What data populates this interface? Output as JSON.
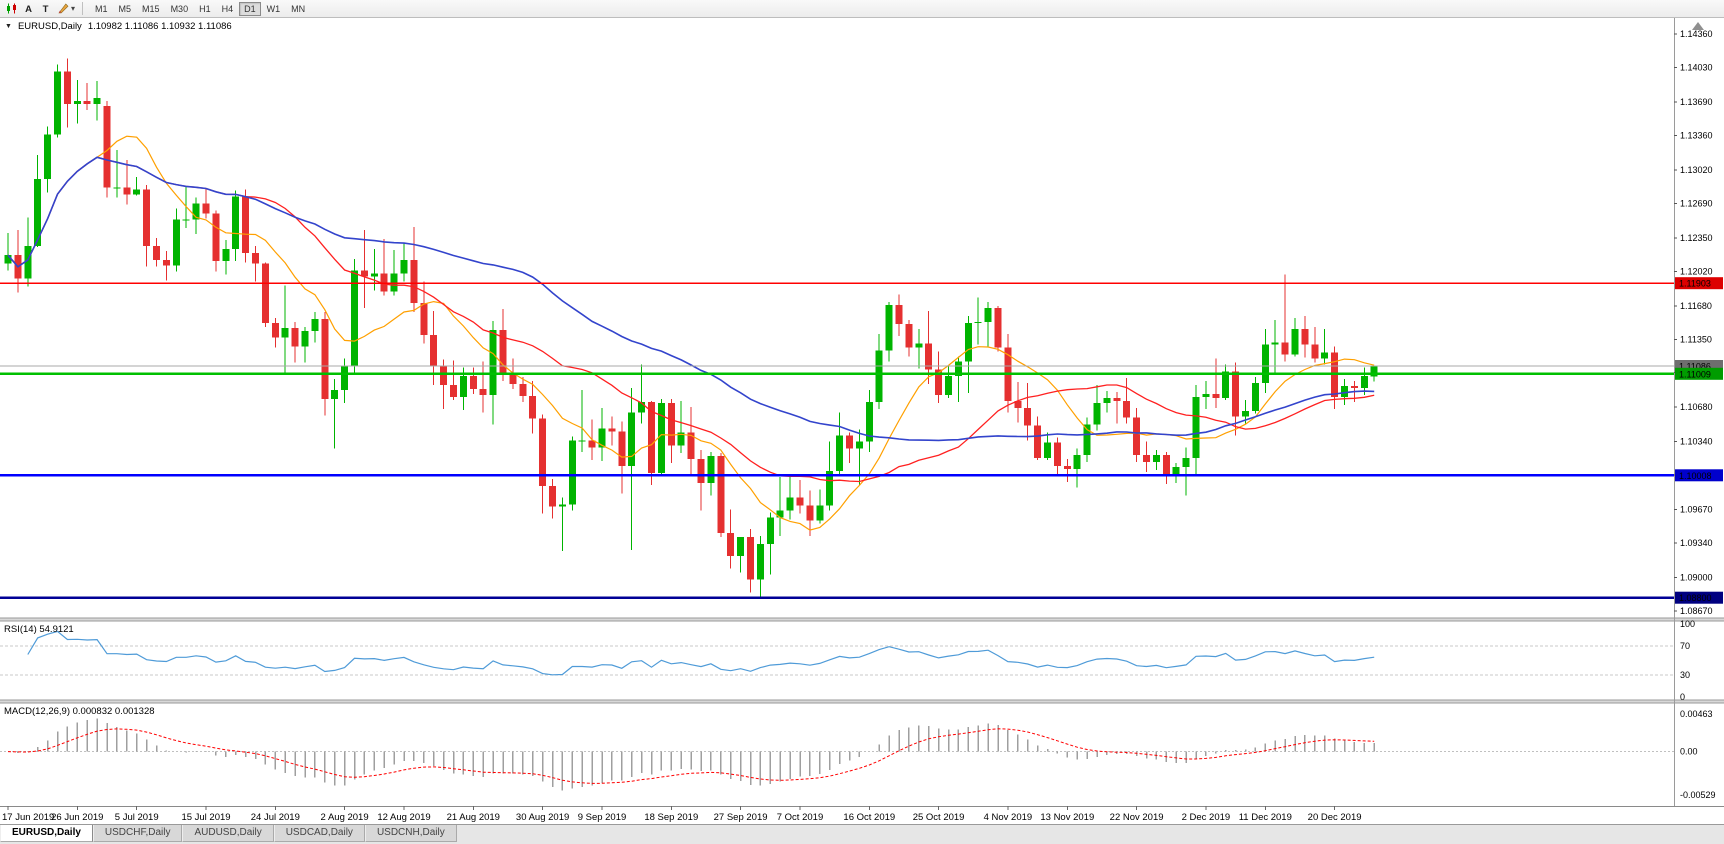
{
  "window": {
    "title": "EURUSD,Daily",
    "ohlc": "1.10982 1.11086 1.10932 1.11086"
  },
  "toolbar": {
    "buttons": [
      {
        "label": "A"
      },
      {
        "label": "T"
      }
    ],
    "timeframes": [
      "M1",
      "M5",
      "M15",
      "M30",
      "H1",
      "H4",
      "D1",
      "W1",
      "MN"
    ],
    "active_timeframe": "D1"
  },
  "chart_data": {
    "type": "candlestick",
    "symbol": "EURUSD",
    "timeframe": "Daily",
    "colors": {
      "up": "#00b400",
      "down": "#e53030"
    },
    "y_range": {
      "max": 1.1452,
      "min": 1.086
    },
    "y_ticks": [
      "1.14360",
      "1.14030",
      "1.13690",
      "1.13360",
      "1.13020",
      "1.12690",
      "1.12350",
      "1.12020",
      "1.11680",
      "1.11350",
      "1.11020",
      "1.10680",
      "1.10340",
      "1.10010",
      "1.09670",
      "1.09340",
      "1.09000",
      "1.08670"
    ],
    "x_ticks": [
      "17 Jun 2019",
      "26 Jun 2019",
      "5 Jul 2019",
      "15 Jul 2019",
      "24 Jul 2019",
      "2 Aug 2019",
      "12 Aug 2019",
      "21 Aug 2019",
      "30 Aug 2019",
      "9 Sep 2019",
      "18 Sep 2019",
      "27 Sep 2019",
      "7 Oct 2019",
      "16 Oct 2019",
      "25 Oct 2019",
      "4 Nov 2019",
      "13 Nov 2019",
      "22 Nov 2019",
      "2 Dec 2019",
      "11 Dec 2019",
      "20 Dec 2019"
    ],
    "candles": [
      [
        1.121,
        1.124,
        1.1203,
        1.1218
      ],
      [
        1.1218,
        1.1243,
        1.1181,
        1.1195
      ],
      [
        1.1195,
        1.1255,
        1.1187,
        1.1227
      ],
      [
        1.1227,
        1.1317,
        1.1226,
        1.1293
      ],
      [
        1.1293,
        1.1345,
        1.128,
        1.1337
      ],
      [
        1.1337,
        1.1406,
        1.1334,
        1.1399
      ],
      [
        1.1399,
        1.1412,
        1.1344,
        1.1367
      ],
      [
        1.1367,
        1.1391,
        1.1348,
        1.137
      ],
      [
        1.137,
        1.1388,
        1.1361,
        1.1367
      ],
      [
        1.1367,
        1.139,
        1.1351,
        1.1373
      ],
      [
        1.1365,
        1.137,
        1.1275,
        1.1285
      ],
      [
        1.1285,
        1.1322,
        1.1275,
        1.1285
      ],
      [
        1.1285,
        1.1312,
        1.1268,
        1.1278
      ],
      [
        1.1278,
        1.1295,
        1.1277,
        1.1283
      ],
      [
        1.1283,
        1.1287,
        1.1207,
        1.1227
      ],
      [
        1.1227,
        1.1235,
        1.1207,
        1.1213
      ],
      [
        1.1213,
        1.1222,
        1.1193,
        1.1208
      ],
      [
        1.1208,
        1.1264,
        1.1202,
        1.1253
      ],
      [
        1.1253,
        1.1286,
        1.1245,
        1.1253
      ],
      [
        1.1253,
        1.1275,
        1.1239,
        1.1269
      ],
      [
        1.1269,
        1.1284,
        1.1254,
        1.1259
      ],
      [
        1.1259,
        1.1262,
        1.1202,
        1.1212
      ],
      [
        1.1212,
        1.1233,
        1.1199,
        1.1224
      ],
      [
        1.1224,
        1.1282,
        1.1212,
        1.1276
      ],
      [
        1.1276,
        1.1283,
        1.1211,
        1.122
      ],
      [
        1.122,
        1.1227,
        1.1192,
        1.121
      ],
      [
        1.121,
        1.1211,
        1.1147,
        1.1151
      ],
      [
        1.1151,
        1.1156,
        1.1127,
        1.1137
      ],
      [
        1.1137,
        1.1188,
        1.1101,
        1.1146
      ],
      [
        1.1146,
        1.1152,
        1.1112,
        1.1128
      ],
      [
        1.1128,
        1.1147,
        1.1112,
        1.1143
      ],
      [
        1.1143,
        1.1162,
        1.1132,
        1.1155
      ],
      [
        1.1155,
        1.1162,
        1.106,
        1.1076
      ],
      [
        1.1076,
        1.1096,
        1.1027,
        1.1085
      ],
      [
        1.1085,
        1.1116,
        1.1072,
        1.1108
      ],
      [
        1.1108,
        1.1214,
        1.1102,
        1.1203
      ],
      [
        1.1203,
        1.1243,
        1.1166,
        1.1197
      ],
      [
        1.1197,
        1.1224,
        1.1183,
        1.12
      ],
      [
        1.12,
        1.1234,
        1.1178,
        1.1182
      ],
      [
        1.1182,
        1.1223,
        1.1178,
        1.12
      ],
      [
        1.12,
        1.123,
        1.1192,
        1.1213
      ],
      [
        1.1213,
        1.1246,
        1.1162,
        1.1171
      ],
      [
        1.1171,
        1.1192,
        1.1131,
        1.1139
      ],
      [
        1.1139,
        1.1163,
        1.109,
        1.1109
      ],
      [
        1.1109,
        1.1115,
        1.1066,
        1.109
      ],
      [
        1.109,
        1.1114,
        1.1075,
        1.1078
      ],
      [
        1.1078,
        1.1107,
        1.1065,
        1.1099
      ],
      [
        1.1099,
        1.1107,
        1.1081,
        1.1086
      ],
      [
        1.1086,
        1.1113,
        1.1063,
        1.108
      ],
      [
        1.108,
        1.1153,
        1.1051,
        1.1144
      ],
      [
        1.1144,
        1.1165,
        1.1094,
        1.1101
      ],
      [
        1.1101,
        1.1116,
        1.1086,
        1.1091
      ],
      [
        1.1091,
        1.1098,
        1.1073,
        1.1079
      ],
      [
        1.1079,
        1.1094,
        1.1042,
        1.1057
      ],
      [
        1.1057,
        1.1061,
        1.0963,
        1.099
      ],
      [
        1.099,
        1.0997,
        1.0958,
        1.097
      ],
      [
        1.097,
        1.0979,
        1.0926,
        1.0972
      ],
      [
        1.0972,
        1.1039,
        1.0966,
        1.1035
      ],
      [
        1.1035,
        1.1085,
        1.1024,
        1.1035
      ],
      [
        1.1035,
        1.1056,
        1.1016,
        1.1028
      ],
      [
        1.1028,
        1.1067,
        1.1015,
        1.1047
      ],
      [
        1.1047,
        1.1059,
        1.103,
        1.1044
      ],
      [
        1.1044,
        1.1054,
        1.0983,
        1.101
      ],
      [
        1.101,
        1.1087,
        1.0927,
        1.1063
      ],
      [
        1.1063,
        1.111,
        1.1052,
        1.1073
      ],
      [
        1.1073,
        1.1074,
        1.0991,
        1.1003
      ],
      [
        1.1003,
        1.1076,
        1.1001,
        1.1072
      ],
      [
        1.1072,
        1.1076,
        1.1013,
        1.103
      ],
      [
        1.103,
        1.1074,
        1.1023,
        1.1043
      ],
      [
        1.1043,
        1.1068,
        1.1,
        1.1017
      ],
      [
        1.1017,
        1.1026,
        1.0966,
        1.0993
      ],
      [
        1.0993,
        1.1024,
        1.0981,
        1.102
      ],
      [
        1.102,
        1.1023,
        1.094,
        1.0944
      ],
      [
        1.0944,
        1.0967,
        1.0909,
        1.0921
      ],
      [
        1.0921,
        1.0938,
        1.0905,
        1.094
      ],
      [
        1.094,
        1.0948,
        1.0885,
        1.0898
      ],
      [
        1.0898,
        1.0941,
        1.0879,
        1.0933
      ],
      [
        1.0933,
        1.0964,
        1.0903,
        1.0959
      ],
      [
        1.0959,
        1.0999,
        1.0941,
        1.0966
      ],
      [
        1.0966,
        1.0999,
        1.0957,
        1.0979
      ],
      [
        1.0979,
        1.0996,
        1.0963,
        1.0971
      ],
      [
        1.0971,
        1.0986,
        1.0941,
        1.0956
      ],
      [
        1.0956,
        1.0987,
        1.0953,
        1.0971
      ],
      [
        1.0971,
        1.1034,
        1.0966,
        1.1005
      ],
      [
        1.1005,
        1.1063,
        1.1002,
        1.104
      ],
      [
        1.104,
        1.1043,
        1.1013,
        1.1027
      ],
      [
        1.1027,
        1.1046,
        1.0991,
        1.1034
      ],
      [
        1.1034,
        1.1085,
        1.1024,
        1.1073
      ],
      [
        1.1073,
        1.114,
        1.1066,
        1.1124
      ],
      [
        1.1124,
        1.1172,
        1.1113,
        1.1169
      ],
      [
        1.1169,
        1.1179,
        1.1138,
        1.115
      ],
      [
        1.115,
        1.1154,
        1.1118,
        1.1127
      ],
      [
        1.1127,
        1.1145,
        1.1106,
        1.1131
      ],
      [
        1.1131,
        1.1163,
        1.1091,
        1.1105
      ],
      [
        1.1105,
        1.1123,
        1.1072,
        1.108
      ],
      [
        1.108,
        1.1108,
        1.1077,
        1.1099
      ],
      [
        1.1099,
        1.1118,
        1.1073,
        1.1113
      ],
      [
        1.1113,
        1.1158,
        1.1082,
        1.1151
      ],
      [
        1.1151,
        1.1176,
        1.113,
        1.1152
      ],
      [
        1.1152,
        1.1172,
        1.1128,
        1.1166
      ],
      [
        1.1166,
        1.1168,
        1.1123,
        1.1127
      ],
      [
        1.1127,
        1.114,
        1.1063,
        1.1074
      ],
      [
        1.1074,
        1.1093,
        1.1053,
        1.1067
      ],
      [
        1.1067,
        1.1092,
        1.1035,
        1.105
      ],
      [
        1.105,
        1.1059,
        1.1016,
        1.1018
      ],
      [
        1.1018,
        1.1043,
        1.1016,
        1.1033
      ],
      [
        1.1033,
        1.1038,
        1.1002,
        1.101
      ],
      [
        1.101,
        1.1017,
        1.0994,
        1.1007
      ],
      [
        1.1007,
        1.1027,
        1.0989,
        1.1021
      ],
      [
        1.1021,
        1.1058,
        1.1014,
        1.1051
      ],
      [
        1.1051,
        1.109,
        1.1045,
        1.1072
      ],
      [
        1.1072,
        1.1084,
        1.1063,
        1.1077
      ],
      [
        1.1077,
        1.1083,
        1.1052,
        1.1074
      ],
      [
        1.1074,
        1.1097,
        1.1052,
        1.1058
      ],
      [
        1.1058,
        1.1067,
        1.1014,
        1.1021
      ],
      [
        1.1021,
        1.1034,
        1.1004,
        1.1014
      ],
      [
        1.1014,
        1.1026,
        1.1006,
        1.1021
      ],
      [
        1.1021,
        1.1024,
        1.0992,
        1.1002
      ],
      [
        1.1002,
        1.1013,
        1.0993,
        1.1009
      ],
      [
        1.1009,
        1.1028,
        1.0981,
        1.1018
      ],
      [
        1.1018,
        1.109,
        1.1002,
        1.1078
      ],
      [
        1.1078,
        1.1094,
        1.1066,
        1.1081
      ],
      [
        1.1081,
        1.1116,
        1.1067,
        1.1077
      ],
      [
        1.1077,
        1.111,
        1.1075,
        1.1103
      ],
      [
        1.1103,
        1.1112,
        1.104,
        1.1059
      ],
      [
        1.1059,
        1.1075,
        1.1052,
        1.1064
      ],
      [
        1.1064,
        1.1098,
        1.1062,
        1.1092
      ],
      [
        1.1092,
        1.1145,
        1.1082,
        1.113
      ],
      [
        1.113,
        1.1154,
        1.1102,
        1.1132
      ],
      [
        1.1132,
        1.1199,
        1.1113,
        1.112
      ],
      [
        1.112,
        1.1156,
        1.1118,
        1.1145
      ],
      [
        1.1145,
        1.1158,
        1.1117,
        1.113
      ],
      [
        1.113,
        1.1147,
        1.1112,
        1.1116
      ],
      [
        1.1116,
        1.1145,
        1.111,
        1.1122
      ],
      [
        1.1122,
        1.1128,
        1.1066,
        1.1078
      ],
      [
        1.1078,
        1.1096,
        1.107,
        1.1089
      ],
      [
        1.1089,
        1.1094,
        1.1073,
        1.1087
      ],
      [
        1.1087,
        1.1107,
        1.108,
        1.1099
      ],
      [
        1.10982,
        1.11086,
        1.10932,
        1.11086
      ]
    ],
    "levels": [
      {
        "name": "resistance-red",
        "value": 1.11903,
        "color": "#ff0000",
        "width": 1.4,
        "label": "1.11903",
        "label_bg": "#dd0000"
      },
      {
        "name": "support-green",
        "value": 1.11009,
        "color": "#00c000",
        "width": 2.6,
        "label": "1.11009",
        "label_bg": "#009c00"
      },
      {
        "name": "support-blue",
        "value": 1.10008,
        "color": "#0000ff",
        "width": 2.2,
        "label": "1.10008",
        "label_bg": "#0000cc"
      },
      {
        "name": "support-navy",
        "value": 1.088,
        "color": "#000096",
        "width": 2.6,
        "label": "1.08800",
        "label_bg": "#000080"
      }
    ],
    "current_price": {
      "value": 1.11086,
      "label": "1.11086",
      "line_color": "#a8a8a8",
      "label_bg": "#6e6e6e"
    },
    "moving_averages": [
      {
        "name": "ma-fast",
        "period": 10,
        "color": "#ffa000",
        "width": 1.2
      },
      {
        "name": "ma-mid",
        "period": 25,
        "color": "#ff2020",
        "width": 1.3
      },
      {
        "name": "ma-slow",
        "period": 50,
        "color": "#3344cc",
        "width": 1.6
      }
    ],
    "rsi": {
      "label": "RSI(14) 54.9121",
      "period": 14,
      "line_color": "#4f9bd8",
      "levels": [
        100,
        70,
        30,
        0
      ],
      "dashed_levels": [
        70,
        30
      ]
    },
    "macd": {
      "label": "MACD(12,26,9) 0.000832 0.001328",
      "fast": 12,
      "slow": 26,
      "signal": 9,
      "hist_color": "#9f9f9f",
      "signal_color": "#ff0000",
      "y_labels": [
        {
          "text": "0.00463",
          "value": 0.00463
        },
        {
          "text": "0.00",
          "value": 0
        },
        {
          "text": "-0.00529",
          "value": -0.00529
        }
      ],
      "range": {
        "max": 0.0056,
        "min": -0.0063
      }
    }
  },
  "tabs": [
    {
      "label": "EURUSD,Daily",
      "active": true
    },
    {
      "label": "USDCHF,Daily",
      "active": false
    },
    {
      "label": "AUDUSD,Daily",
      "active": false
    },
    {
      "label": "USDCAD,Daily",
      "active": false
    },
    {
      "label": "USDCNH,Daily",
      "active": false
    }
  ]
}
